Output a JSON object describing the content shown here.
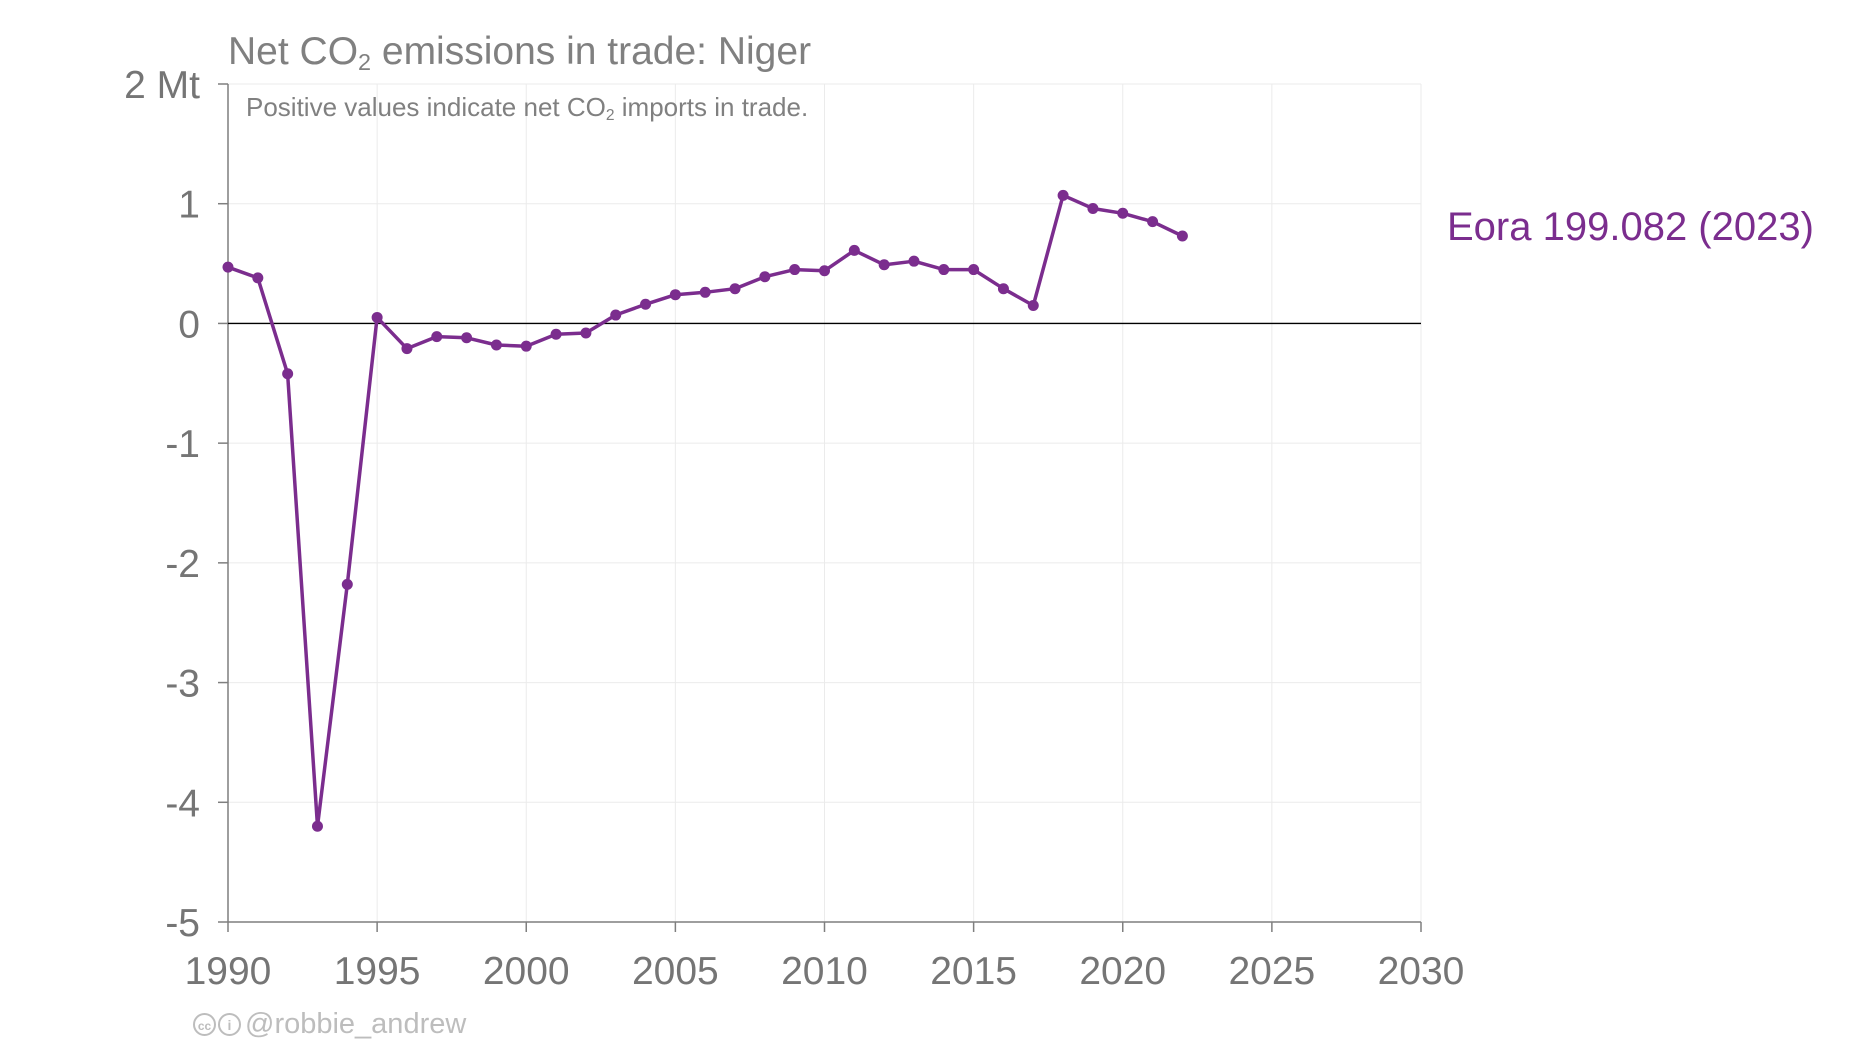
{
  "chart_data": {
    "type": "line",
    "title_prefix": "Net CO",
    "title_sub": "2",
    "title_suffix": " emissions in trade: Niger",
    "subtitle_prefix": "Positive values indicate net CO",
    "subtitle_sub": "2",
    "subtitle_suffix": " imports in trade.",
    "ylabel_unit": "Mt",
    "xlim": [
      1990,
      2030
    ],
    "ylim": [
      -5,
      2
    ],
    "x_ticks": [
      "1990",
      "1995",
      "2000",
      "2005",
      "2010",
      "2015",
      "2020",
      "2025",
      "2030"
    ],
    "y_ticks": [
      "2 Mt",
      "1",
      "0",
      "-1",
      "-2",
      "-3",
      "-4",
      "-5"
    ],
    "y_tick_values": [
      2,
      1,
      0,
      -1,
      -2,
      -3,
      -4,
      -5
    ],
    "x_tick_values": [
      1990,
      1995,
      2000,
      2005,
      2010,
      2015,
      2020,
      2025,
      2030
    ],
    "grid": true,
    "zero_line": true,
    "series": [
      {
        "name": "Eora 199.082 (2023)",
        "color": "#7B2D8E",
        "x": [
          1990,
          1991,
          1992,
          1993,
          1994,
          1995,
          1996,
          1997,
          1998,
          1999,
          2000,
          2001,
          2002,
          2003,
          2004,
          2005,
          2006,
          2007,
          2008,
          2009,
          2010,
          2011,
          2012,
          2013,
          2014,
          2015,
          2016,
          2017,
          2018,
          2019,
          2020,
          2021,
          2022
        ],
        "y": [
          0.47,
          0.38,
          -0.42,
          -4.2,
          -2.18,
          0.05,
          -0.21,
          -0.11,
          -0.12,
          -0.18,
          -0.19,
          -0.09,
          -0.08,
          0.07,
          0.16,
          0.24,
          0.26,
          0.29,
          0.39,
          0.45,
          0.44,
          0.61,
          0.49,
          0.52,
          0.45,
          0.45,
          0.29,
          0.15,
          1.07,
          0.96,
          0.92,
          0.85,
          0.73
        ]
      }
    ]
  },
  "credit": {
    "cc_icon": "cc",
    "by_icon": "i",
    "handle": "@robbie_andrew"
  }
}
